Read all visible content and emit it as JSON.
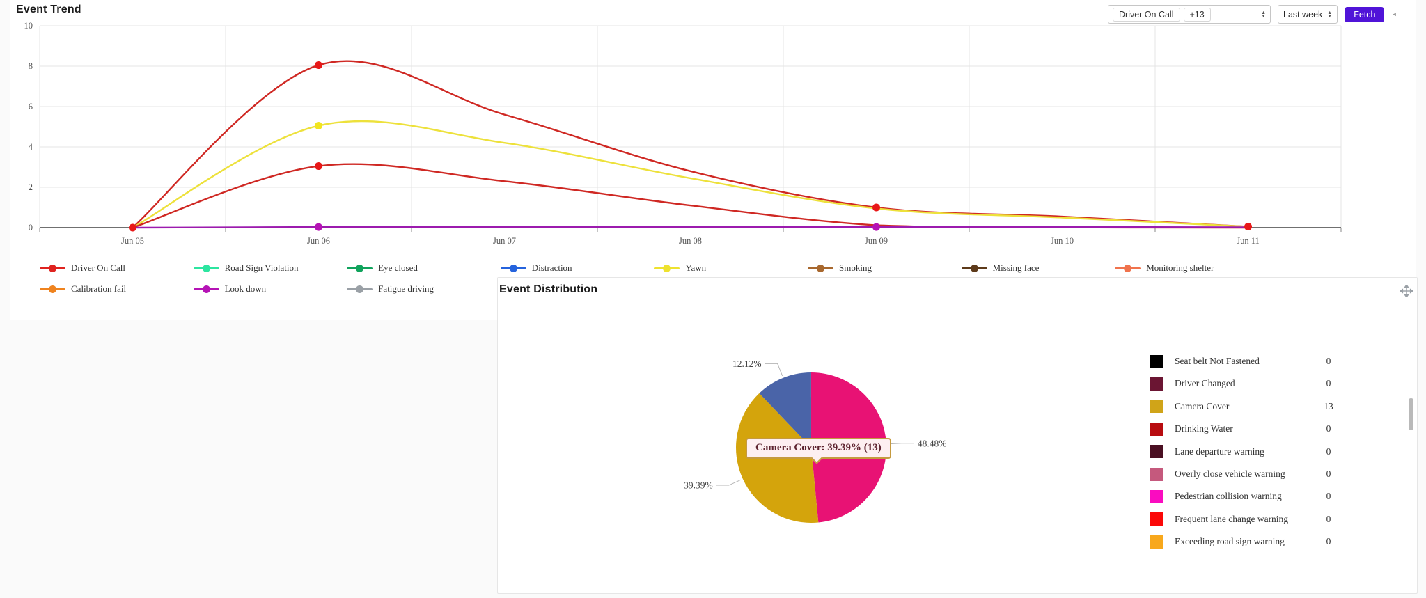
{
  "controls": {
    "series_tags": [
      "Driver On Call",
      "+13"
    ],
    "range_value": "Last week",
    "fetch_label": "Fetch",
    "collapse_glyph": "◄",
    "spinner_up": "▲",
    "spinner_down": "▼"
  },
  "icons": {
    "move": "move-icon",
    "series_spinner": "up-down-spinner-icon",
    "range_spinner": "up-down-spinner-icon",
    "collapse": "collapse-arrow-icon"
  },
  "chart_data": [
    {
      "type": "line",
      "title": "Event Trend",
      "x": [
        "Jun 05",
        "Jun 06",
        "Jun 07",
        "Jun 08",
        "Jun 09",
        "Jun 10",
        "Jun 11"
      ],
      "ylim": [
        0,
        10
      ],
      "yticks": [
        0,
        2,
        4,
        6,
        8,
        10
      ],
      "grid": true,
      "legend_position": "bottom",
      "series": [
        {
          "name": "Driver On Call",
          "color": "#cf2823",
          "dot": "#e81818",
          "values": [
            0,
            8.05,
            5.6,
            2.8,
            1.0,
            0.55,
            0.05
          ],
          "markers": [
            0,
            1,
            4,
            6
          ]
        },
        {
          "name": "Yawn",
          "color": "#ede13b",
          "dot": "#f2e51e",
          "values": [
            0,
            5.05,
            4.2,
            2.45,
            0.95,
            0.5,
            0.05
          ],
          "markers": [
            1
          ]
        },
        {
          "name": "red-unlabeled",
          "color": "#cf2823",
          "dot": "#e81818",
          "values": [
            0,
            3.05,
            2.3,
            1.1,
            0.12,
            0.01,
            0
          ],
          "markers": [
            1
          ]
        },
        {
          "name": "Look down",
          "color": "#9c1bae",
          "dot": "#b513b5",
          "values": [
            0,
            0.03,
            0.03,
            0.03,
            0.03,
            0.03,
            0.02
          ],
          "markers": [
            1,
            4
          ]
        }
      ],
      "legend": [
        {
          "name": "Driver On Call",
          "color": "#df231f"
        },
        {
          "name": "Road Sign Violation",
          "color": "#2ce5a0"
        },
        {
          "name": "Eye closed",
          "color": "#10a35c"
        },
        {
          "name": "Distraction",
          "color": "#2563dd"
        },
        {
          "name": "Yawn",
          "color": "#eee22f"
        },
        {
          "name": "Smoking",
          "color": "#a8682e"
        },
        {
          "name": "Missing face",
          "color": "#5d3a1a"
        },
        {
          "name": "Monitoring shelter",
          "color": "#f0734d"
        },
        {
          "name": "Calibration fail",
          "color": "#ef831e"
        },
        {
          "name": "Look down",
          "color": "#b513b5"
        },
        {
          "name": "Fatigue driving",
          "color": "#9aa0a6"
        }
      ]
    },
    {
      "type": "pie",
      "title": "Event Distribution",
      "slices": [
        {
          "pct": "48.48%",
          "value": 48.48,
          "color": "#e81274"
        },
        {
          "pct": "39.39%",
          "value": 39.39,
          "color": "#d4a40c",
          "name": "Camera Cover"
        },
        {
          "pct": "12.12%",
          "value": 12.12,
          "color": "#4a64a8"
        }
      ],
      "tooltip": "Camera Cover: 39.39% (13)",
      "legend_position": "right",
      "legend": [
        {
          "label": "Seat belt Not Fastened",
          "color": "#000000",
          "count": "0"
        },
        {
          "label": "Driver Changed",
          "color": "#6b1533",
          "count": "0"
        },
        {
          "label": "Camera Cover",
          "color": "#d0a418",
          "count": "13"
        },
        {
          "label": "Drinking Water",
          "color": "#b80c10",
          "count": "0"
        },
        {
          "label": "Lane departure warning",
          "color": "#4a0f22",
          "count": "0"
        },
        {
          "label": "Overly close vehicle warning",
          "color": "#c5597d",
          "count": "0"
        },
        {
          "label": "Pedestrian collision warning",
          "color": "#fa0cc0",
          "count": "0"
        },
        {
          "label": "Frequent lane change warning",
          "color": "#fb0808",
          "count": "0"
        },
        {
          "label": "Exceeding road sign warning",
          "color": "#f8a81c",
          "count": "0"
        }
      ]
    }
  ]
}
